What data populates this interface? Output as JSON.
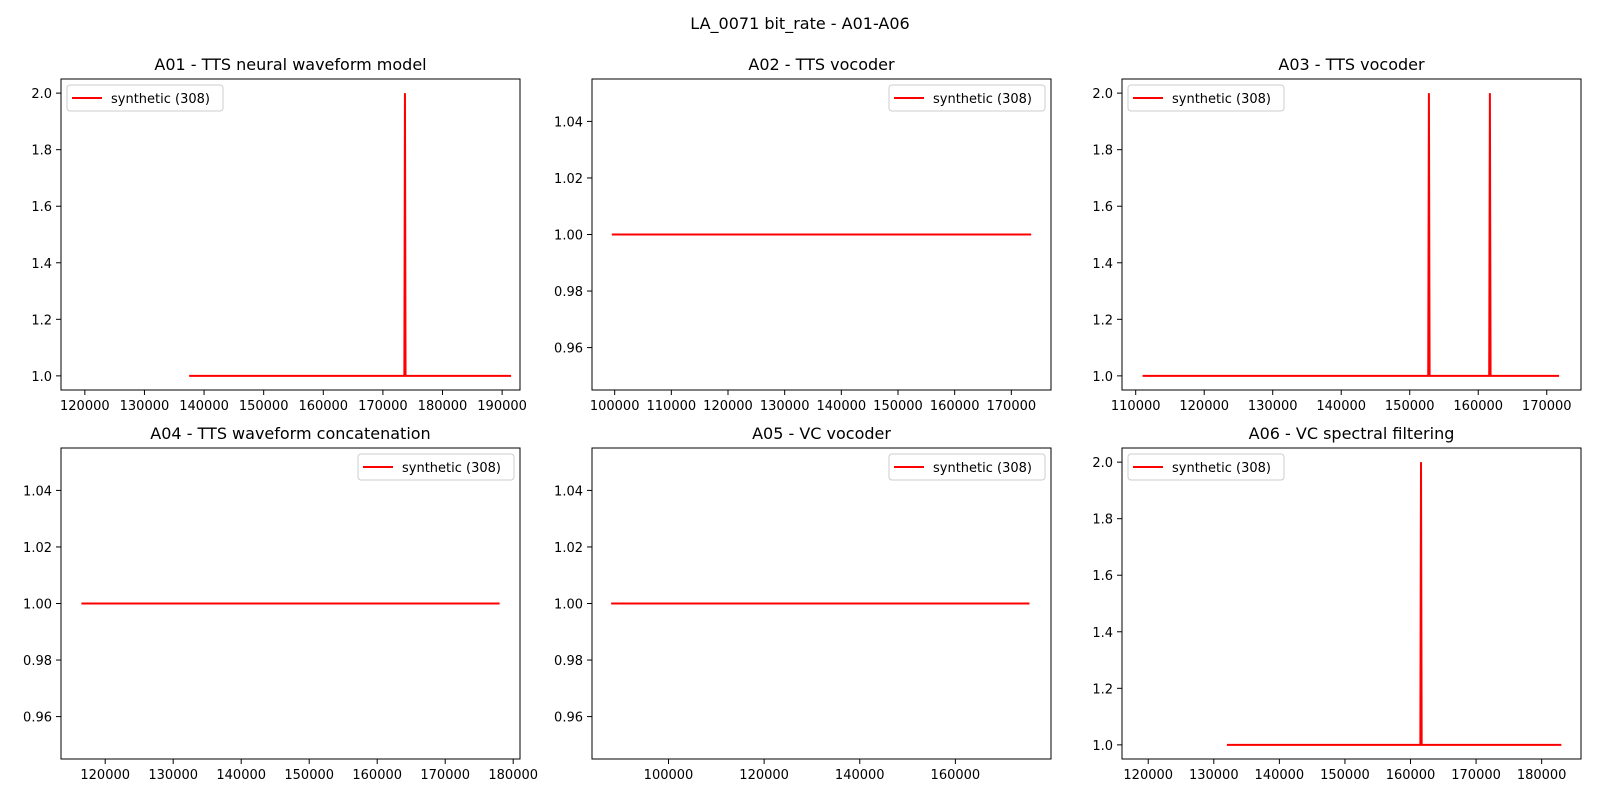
{
  "figure": {
    "suptitle": "LA_0071 bit_rate - A01-A06"
  },
  "colors": {
    "series": "#ff0000",
    "axes": "#000000",
    "legend_border": "#cccccc"
  },
  "chart_data": [
    {
      "type": "line",
      "title": "A01 - TTS neural waveform model",
      "legend_loc": "upper-left",
      "xlim": [
        116000,
        193000
      ],
      "ylim": [
        0.95,
        2.05
      ],
      "xticks": [
        120000,
        130000,
        140000,
        150000,
        160000,
        170000,
        180000,
        190000
      ],
      "yticks": [
        1.0,
        1.2,
        1.4,
        1.6,
        1.8,
        2.0
      ],
      "ytick_labels": [
        "1.0",
        "1.2",
        "1.4",
        "1.6",
        "1.8",
        "2.0"
      ],
      "series": [
        {
          "name": "synthetic (308)",
          "x": [
            137500,
            173600,
            173700,
            173800,
            191500
          ],
          "y": [
            1,
            1,
            2,
            1,
            1
          ]
        }
      ]
    },
    {
      "type": "line",
      "title": "A02 - TTS vocoder",
      "legend_loc": "upper-right",
      "xlim": [
        96000,
        177000
      ],
      "ylim": [
        0.945,
        1.055
      ],
      "xticks": [
        100000,
        110000,
        120000,
        130000,
        140000,
        150000,
        160000,
        170000
      ],
      "yticks": [
        0.96,
        0.98,
        1.0,
        1.02,
        1.04
      ],
      "ytick_labels": [
        "0.96",
        "0.98",
        "1.00",
        "1.02",
        "1.04"
      ],
      "series": [
        {
          "name": "synthetic (308)",
          "x": [
            99500,
            173500
          ],
          "y": [
            1,
            1
          ]
        }
      ]
    },
    {
      "type": "line",
      "title": "A03 - TTS vocoder",
      "legend_loc": "upper-left",
      "xlim": [
        108000,
        175000
      ],
      "ylim": [
        0.95,
        2.05
      ],
      "xticks": [
        110000,
        120000,
        130000,
        140000,
        150000,
        160000,
        170000
      ],
      "yticks": [
        1.0,
        1.2,
        1.4,
        1.6,
        1.8,
        2.0
      ],
      "ytick_labels": [
        "1.0",
        "1.2",
        "1.4",
        "1.6",
        "1.8",
        "2.0"
      ],
      "series": [
        {
          "name": "synthetic (308)",
          "x": [
            111000,
            152700,
            152800,
            152900,
            161600,
            161700,
            161800,
            171800
          ],
          "y": [
            1,
            1,
            2,
            1,
            1,
            2,
            1,
            1
          ]
        }
      ]
    },
    {
      "type": "line",
      "title": "A04 - TTS waveform concatenation",
      "legend_loc": "upper-right",
      "xlim": [
        113500,
        181000
      ],
      "ylim": [
        0.945,
        1.055
      ],
      "xticks": [
        120000,
        130000,
        140000,
        150000,
        160000,
        170000,
        180000
      ],
      "yticks": [
        0.96,
        0.98,
        1.0,
        1.02,
        1.04
      ],
      "ytick_labels": [
        "0.96",
        "0.98",
        "1.00",
        "1.02",
        "1.04"
      ],
      "series": [
        {
          "name": "synthetic (308)",
          "x": [
            116500,
            178000
          ],
          "y": [
            1,
            1
          ]
        }
      ]
    },
    {
      "type": "line",
      "title": "A05 - VC vocoder",
      "legend_loc": "upper-right",
      "xlim": [
        84000,
        180000
      ],
      "ylim": [
        0.945,
        1.055
      ],
      "xticks": [
        100000,
        120000,
        140000,
        160000
      ],
      "yticks": [
        0.96,
        0.98,
        1.0,
        1.02,
        1.04
      ],
      "ytick_labels": [
        "0.96",
        "0.98",
        "1.00",
        "1.02",
        "1.04"
      ],
      "series": [
        {
          "name": "synthetic (308)",
          "x": [
            88000,
            175500
          ],
          "y": [
            1,
            1
          ]
        }
      ]
    },
    {
      "type": "line",
      "title": "A06 - VC spectral filtering",
      "legend_loc": "upper-left",
      "xlim": [
        116000,
        186000
      ],
      "ylim": [
        0.95,
        2.05
      ],
      "xticks": [
        120000,
        130000,
        140000,
        150000,
        160000,
        170000,
        180000
      ],
      "yticks": [
        1.0,
        1.2,
        1.4,
        1.6,
        1.8,
        2.0
      ],
      "ytick_labels": [
        "1.0",
        "1.2",
        "1.4",
        "1.6",
        "1.8",
        "2.0"
      ],
      "series": [
        {
          "name": "synthetic (308)",
          "x": [
            132000,
            161500,
            161600,
            161700,
            183000
          ],
          "y": [
            1,
            1,
            2,
            1,
            1
          ]
        }
      ]
    }
  ]
}
